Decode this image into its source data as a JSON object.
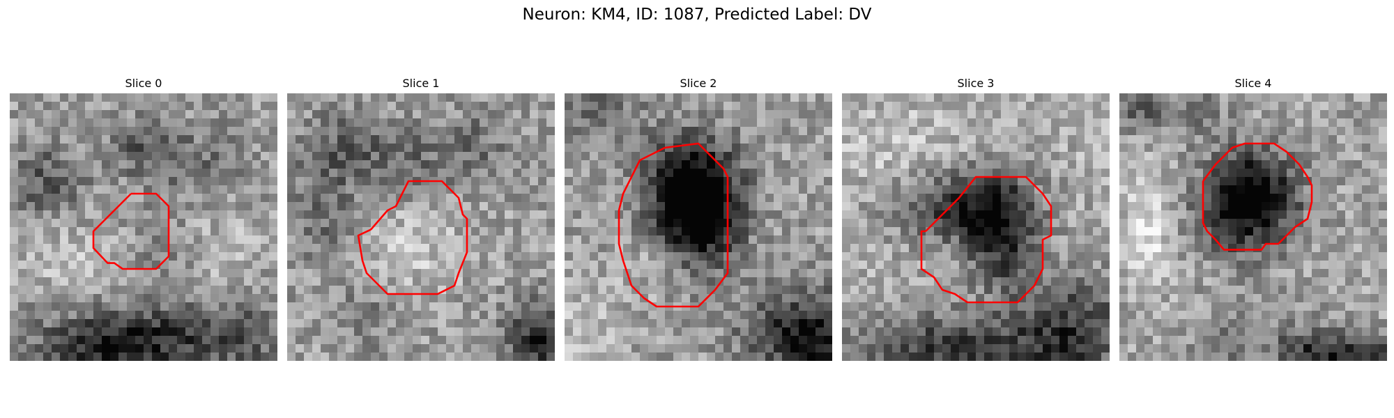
{
  "figure": {
    "title": "Neuron: KM4, ID: 1087, Predicted Label: DV"
  },
  "contour_color": "#ff0000",
  "colormap": "gray",
  "slices": [
    {
      "title": "Slice 0",
      "id": "slice-0"
    },
    {
      "title": "Slice 1",
      "id": "slice-1"
    },
    {
      "title": "Slice 2",
      "id": "slice-2"
    },
    {
      "title": "Slice 3",
      "id": "slice-3"
    },
    {
      "title": "Slice 4",
      "id": "slice-4"
    }
  ]
}
